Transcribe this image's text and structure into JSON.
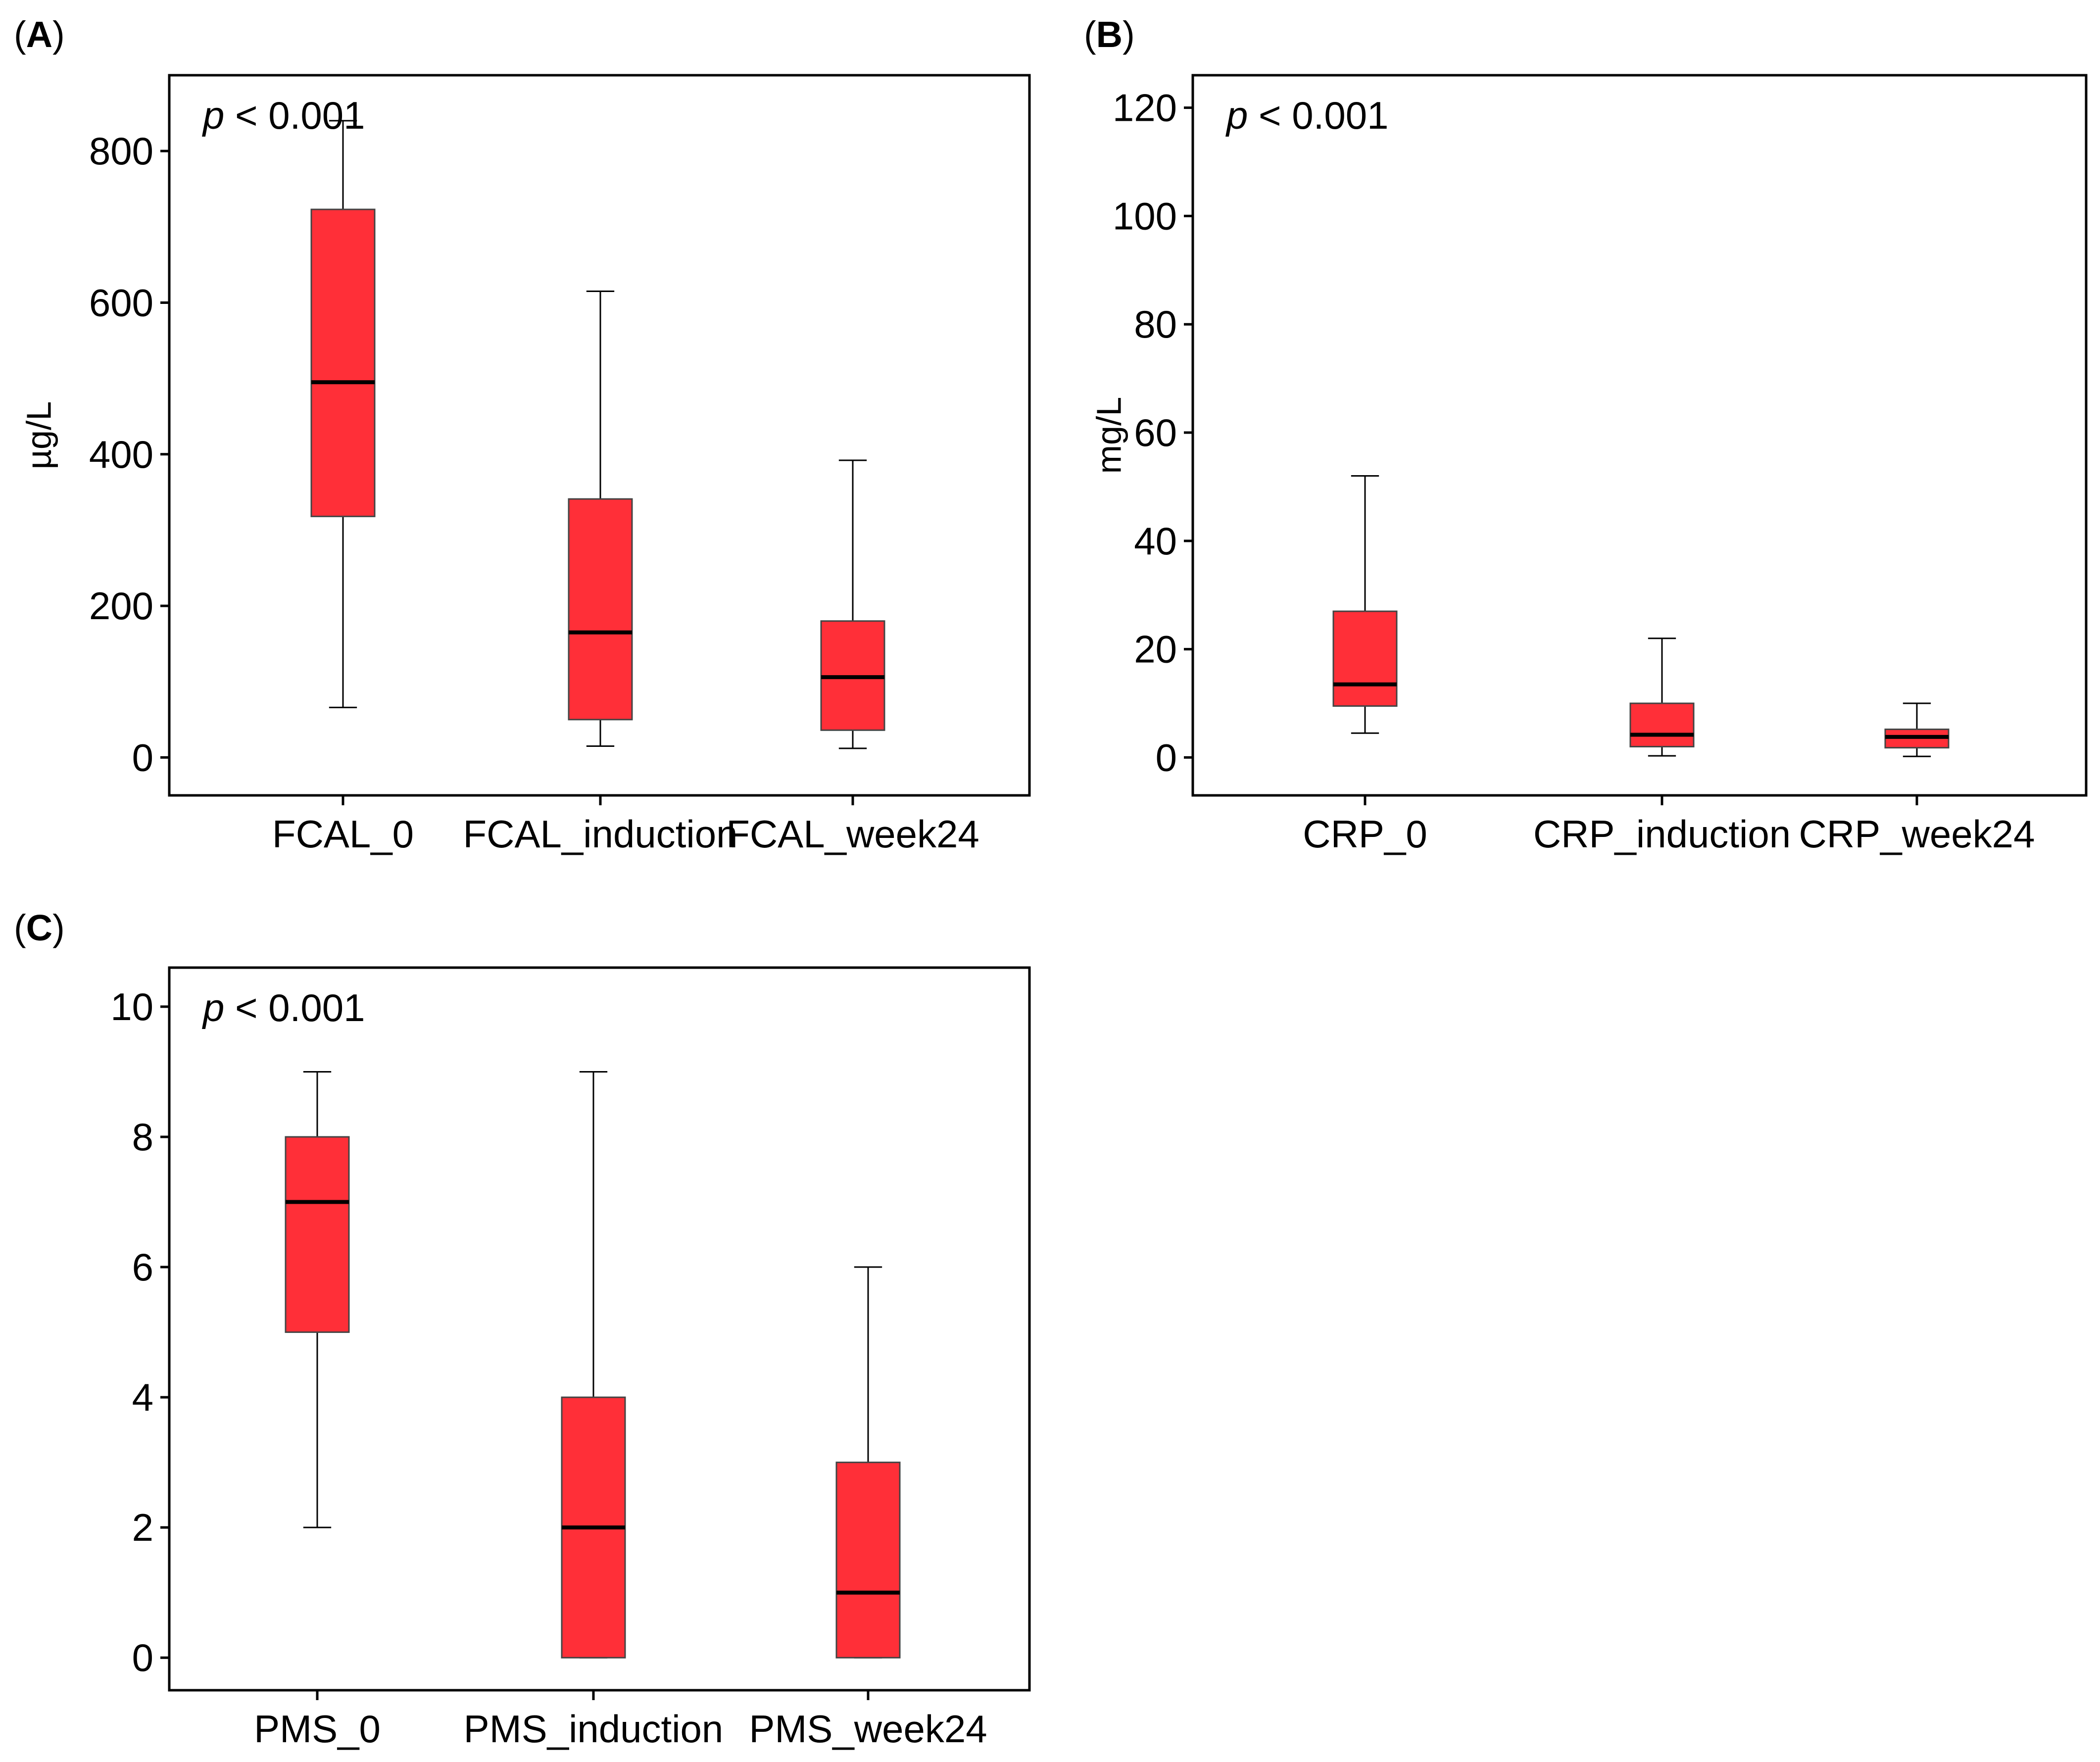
{
  "figure": {
    "panels": [
      {
        "label_open": "(",
        "label_letter": "A",
        "label_close": ")"
      },
      {
        "label_open": "(",
        "label_letter": "B",
        "label_close": ")"
      },
      {
        "label_open": "(",
        "label_letter": "C",
        "label_close": ")"
      }
    ]
  },
  "colors": {
    "box_fill": "#ff2f38",
    "box_edge": "#444444",
    "median": "#000000",
    "whisker": "#000000",
    "frame": "#000000"
  },
  "chart_data": [
    {
      "panel": "A",
      "type": "box",
      "ylabel": "µg/L",
      "annotation": {
        "p": "p",
        "rest": " < 0.001"
      },
      "ylim": [
        -50,
        900
      ],
      "yticks": [
        0,
        200,
        400,
        600,
        800
      ],
      "categories": [
        "FCAL_0",
        "FCAL_induction",
        "FCAL_week24"
      ],
      "boxes": [
        {
          "whislo": 66,
          "q1": 318,
          "median": 495,
          "q3": 723,
          "whishi": 840
        },
        {
          "whislo": 15,
          "q1": 50,
          "median": 165,
          "q3": 341,
          "whishi": 615
        },
        {
          "whislo": 12,
          "q1": 36,
          "median": 106,
          "q3": 180,
          "whishi": 392
        }
      ]
    },
    {
      "panel": "B",
      "type": "box",
      "ylabel": "mg/L",
      "annotation": {
        "p": "p",
        "rest": " < 0.001"
      },
      "ylim": [
        -7,
        126
      ],
      "yticks": [
        0,
        20,
        40,
        60,
        80,
        100,
        120
      ],
      "categories": [
        "CRP_0",
        "CRP_induction",
        "CRP_week24"
      ],
      "boxes": [
        {
          "whislo": 4.5,
          "q1": 9.5,
          "median": 13.5,
          "q3": 27,
          "whishi": 52
        },
        {
          "whislo": 0.3,
          "q1": 2,
          "median": 4.2,
          "q3": 10,
          "whishi": 22
        },
        {
          "whislo": 0.2,
          "q1": 1.8,
          "median": 3.8,
          "q3": 5.2,
          "whishi": 10
        }
      ]
    },
    {
      "panel": "C",
      "type": "box",
      "ylabel": "",
      "annotation": {
        "p": "p",
        "rest": " < 0.001"
      },
      "ylim": [
        -0.5,
        10.6
      ],
      "yticks": [
        0,
        2,
        4,
        6,
        8,
        10
      ],
      "categories": [
        "PMS_0",
        "PMS_induction",
        "PMS_week24"
      ],
      "boxes": [
        {
          "whislo": 2,
          "q1": 5,
          "median": 7,
          "q3": 8,
          "whishi": 9
        },
        {
          "whislo": 0,
          "q1": 0,
          "median": 2,
          "q3": 4,
          "whishi": 9
        },
        {
          "whislo": 0,
          "q1": 0,
          "median": 1,
          "q3": 3,
          "whishi": 6
        }
      ]
    }
  ]
}
